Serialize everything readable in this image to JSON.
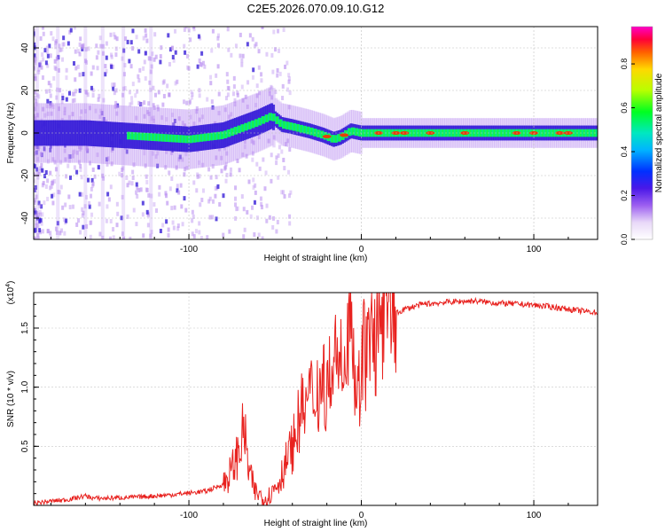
{
  "title": "C2E5.2026.070.09.10.G12",
  "colors": {
    "snr_line": "#e8221f",
    "spectrum_core": "#3a20d8",
    "spectrum_halo": "#b98ef0"
  },
  "chart_data": [
    {
      "type": "heatmap",
      "xlabel": "Height of straight line (km)",
      "ylabel": "Frequency (Hz)",
      "xlim": [
        -190,
        137
      ],
      "ylim": [
        -50,
        50
      ],
      "xticks": [
        -100,
        0,
        100
      ],
      "yticks": [
        -40,
        -20,
        0,
        20,
        40
      ],
      "ridge": {
        "x": [
          -190,
          -160,
          -140,
          -120,
          -100,
          -80,
          -70,
          -60,
          -52,
          -46,
          -40,
          -30,
          -22,
          -16,
          -12,
          -6,
          0,
          10,
          40,
          80,
          110,
          137
        ],
        "freq": [
          0,
          0,
          -1,
          -2,
          -3,
          -1,
          2,
          5,
          8,
          4,
          3,
          1,
          -1,
          -3,
          -2,
          1,
          0,
          0,
          0,
          0,
          0,
          0
        ]
      },
      "hotspots_x": [
        -20,
        -10,
        10,
        20,
        25,
        40,
        60,
        90,
        100,
        115,
        120
      ],
      "colorbar": {
        "label": "Normalized spectral amplitude",
        "range": [
          0.0,
          0.97
        ],
        "ticks": [
          "0.0",
          "0.2",
          "0.4",
          "0.6",
          "0.8"
        ]
      }
    },
    {
      "type": "line",
      "xlabel": "Height of straight line (km)",
      "ylabel": "SNR (10 * v/v)",
      "yscale_label": "(x10",
      "yscale_exponent": "4",
      "yscale_suffix": ")",
      "xlim": [
        -190,
        137
      ],
      "ylim": [
        0,
        1.8
      ],
      "xticks": [
        -100,
        0,
        100
      ],
      "yticks": [
        0.5,
        1.0,
        1.5
      ],
      "ytick_labels": [
        "0.5",
        "1.0",
        "1.5"
      ],
      "series": [
        {
          "name": "SNR",
          "x": [
            -190,
            -170,
            -160,
            -155,
            -150,
            -130,
            -110,
            -90,
            -80,
            -75,
            -70,
            -68,
            -66,
            -62,
            -55,
            -48,
            -40,
            -36,
            -30,
            -25,
            -20,
            -15,
            -10,
            -7,
            -5,
            -2,
            0,
            5,
            10,
            15,
            20,
            25,
            35,
            50,
            65,
            80,
            95,
            110,
            125,
            137
          ],
          "y": [
            0.02,
            0.05,
            0.08,
            0.06,
            0.06,
            0.07,
            0.09,
            0.12,
            0.18,
            0.3,
            0.5,
            0.68,
            0.35,
            0.12,
            0.05,
            0.2,
            0.5,
            0.75,
            0.9,
            1.0,
            1.05,
            1.1,
            1.2,
            1.75,
            1.3,
            0.9,
            1.25,
            1.35,
            1.45,
            1.58,
            1.62,
            1.66,
            1.7,
            1.72,
            1.73,
            1.71,
            1.7,
            1.68,
            1.65,
            1.63
          ]
        }
      ]
    }
  ]
}
